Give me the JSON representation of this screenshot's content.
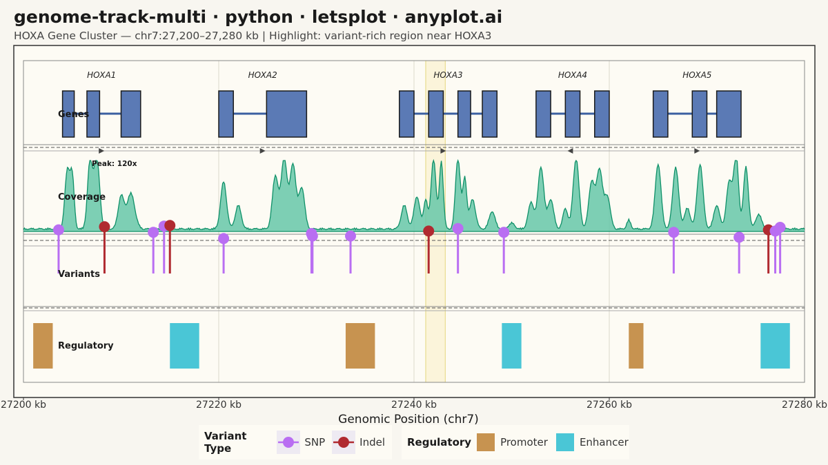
{
  "title": "genome-track-multi · python · letsplot · anyplot.ai",
  "subtitle": "HOXA Gene Cluster — chr7:27,200–27,280 kb  |  Highlight: variant-rich region near HOXA3",
  "chart_data": {
    "type": "genome-tracks",
    "xlabel": "Genomic Position (chr7)",
    "xlim": [
      27200,
      27280
    ],
    "x_ticks": [
      27200,
      27220,
      27240,
      27260,
      27280
    ],
    "x_tick_labels": [
      "27200 kb",
      "27220 kb",
      "27240 kb",
      "27260 kb",
      "27280 kb"
    ],
    "highlight": {
      "start": 27241.2,
      "end": 27243.2
    },
    "tracks": {
      "genes": "Genes",
      "coverage": "Coverage",
      "variants": "Variants",
      "regulatory": "Regulatory"
    },
    "genes": [
      {
        "name": "HOXA1",
        "start": 27204,
        "end": 27212,
        "strand": "+",
        "exons": [
          [
            27204,
            27205.2
          ],
          [
            27206.5,
            27207.8
          ],
          [
            27210,
            27212
          ]
        ]
      },
      {
        "name": "HOXA2",
        "start": 27220,
        "end": 27229,
        "strand": "+",
        "exons": [
          [
            27220,
            27221.5
          ],
          [
            27224.9,
            27229
          ]
        ]
      },
      {
        "name": "HOXA3",
        "start": 27238.5,
        "end": 27248.5,
        "strand": "+",
        "exons": [
          [
            27238.5,
            27240
          ],
          [
            27241.5,
            27243
          ],
          [
            27244.5,
            27245.8
          ],
          [
            27247,
            27248.5
          ]
        ]
      },
      {
        "name": "HOXA4",
        "start": 27252.5,
        "end": 27260,
        "strand": "-",
        "exons": [
          [
            27252.5,
            27254
          ],
          [
            27255.5,
            27257
          ],
          [
            27258.5,
            27260
          ]
        ]
      },
      {
        "name": "HOXA5",
        "start": 27264.5,
        "end": 27273.5,
        "strand": "+",
        "exons": [
          [
            27264.5,
            27266
          ],
          [
            27268.5,
            27270
          ],
          [
            27271,
            27273.5
          ]
        ]
      }
    ],
    "gene_arrows": [
      {
        "x": 27208,
        "dir": "+"
      },
      {
        "x": 27224.5,
        "dir": "+"
      },
      {
        "x": 27243,
        "dir": "+"
      },
      {
        "x": 27256,
        "dir": "-"
      },
      {
        "x": 27269,
        "dir": "+"
      }
    ],
    "coverage_annotation": "Peak: 120x",
    "coverage_max": 120,
    "coverage_peaks": [
      {
        "center": 27204.5,
        "width": 0.25,
        "height": 100
      },
      {
        "center": 27205,
        "width": 0.2,
        "height": 85
      },
      {
        "center": 27206.8,
        "width": 0.25,
        "height": 110
      },
      {
        "center": 27207.5,
        "width": 0.3,
        "height": 120
      },
      {
        "center": 27210,
        "width": 0.3,
        "height": 55
      },
      {
        "center": 27211,
        "width": 0.4,
        "height": 60
      },
      {
        "center": 27220.5,
        "width": 0.3,
        "height": 80
      },
      {
        "center": 27222,
        "width": 0.3,
        "height": 40
      },
      {
        "center": 27225.8,
        "width": 0.3,
        "height": 90
      },
      {
        "center": 27226.7,
        "width": 0.3,
        "height": 120
      },
      {
        "center": 27227.6,
        "width": 0.3,
        "height": 110
      },
      {
        "center": 27228.5,
        "width": 0.3,
        "height": 70
      },
      {
        "center": 27239,
        "width": 0.3,
        "height": 40
      },
      {
        "center": 27240.3,
        "width": 0.3,
        "height": 55
      },
      {
        "center": 27241.2,
        "width": 0.2,
        "height": 50
      },
      {
        "center": 27242,
        "width": 0.25,
        "height": 120
      },
      {
        "center": 27242.8,
        "width": 0.2,
        "height": 115
      },
      {
        "center": 27244.5,
        "width": 0.25,
        "height": 120
      },
      {
        "center": 27245.2,
        "width": 0.2,
        "height": 85
      },
      {
        "center": 27246,
        "width": 0.3,
        "height": 50
      },
      {
        "center": 27248,
        "width": 0.3,
        "height": 30
      },
      {
        "center": 27250,
        "width": 0.3,
        "height": 10
      },
      {
        "center": 27252,
        "width": 0.3,
        "height": 45
      },
      {
        "center": 27253,
        "width": 0.3,
        "height": 105
      },
      {
        "center": 27254,
        "width": 0.3,
        "height": 50
      },
      {
        "center": 27255.5,
        "width": 0.25,
        "height": 35
      },
      {
        "center": 27256.6,
        "width": 0.3,
        "height": 120
      },
      {
        "center": 27258.2,
        "width": 0.3,
        "height": 80
      },
      {
        "center": 27259,
        "width": 0.3,
        "height": 100
      },
      {
        "center": 27259.8,
        "width": 0.3,
        "height": 55
      },
      {
        "center": 27262,
        "width": 0.2,
        "height": 15
      },
      {
        "center": 27265,
        "width": 0.3,
        "height": 110
      },
      {
        "center": 27266.8,
        "width": 0.3,
        "height": 105
      },
      {
        "center": 27268,
        "width": 0.3,
        "height": 35
      },
      {
        "center": 27269.3,
        "width": 0.3,
        "height": 110
      },
      {
        "center": 27271,
        "width": 0.3,
        "height": 40
      },
      {
        "center": 27272.3,
        "width": 0.3,
        "height": 80
      },
      {
        "center": 27273,
        "width": 0.25,
        "height": 120
      },
      {
        "center": 27274,
        "width": 0.25,
        "height": 105
      },
      {
        "center": 27275.3,
        "width": 0.3,
        "height": 25
      }
    ],
    "variants": [
      {
        "pos": 27203.6,
        "type": "SNP",
        "y": 0.3
      },
      {
        "pos": 27208.3,
        "type": "Indel",
        "y": 0.55
      },
      {
        "pos": 27213.3,
        "type": "SNP",
        "y": 0.1
      },
      {
        "pos": 27214.4,
        "type": "SNP",
        "y": 0.6
      },
      {
        "pos": 27215,
        "type": "Indel",
        "y": 0.65
      },
      {
        "pos": 27220.5,
        "type": "SNP",
        "y": -0.4
      },
      {
        "pos": 27229.5,
        "type": "SNP",
        "y": 0.0
      },
      {
        "pos": 27229.6,
        "type": "SNP",
        "y": -0.2
      },
      {
        "pos": 27233.5,
        "type": "SNP",
        "y": -0.2
      },
      {
        "pos": 27241.5,
        "type": "Indel",
        "y": 0.2
      },
      {
        "pos": 27244.5,
        "type": "SNP",
        "y": 0.4
      },
      {
        "pos": 27249.2,
        "type": "SNP",
        "y": 0.1
      },
      {
        "pos": 27266.6,
        "type": "SNP",
        "y": 0.1
      },
      {
        "pos": 27273.3,
        "type": "SNP",
        "y": -0.3
      },
      {
        "pos": 27276.3,
        "type": "Indel",
        "y": 0.3
      },
      {
        "pos": 27277,
        "type": "SNP",
        "y": 0.2
      },
      {
        "pos": 27277.5,
        "type": "SNP",
        "y": 0.5
      }
    ],
    "regulatory": [
      {
        "start": 27201,
        "end": 27203,
        "type": "Promoter"
      },
      {
        "start": 27215,
        "end": 27218,
        "type": "Enhancer"
      },
      {
        "start": 27233,
        "end": 27236,
        "type": "Promoter"
      },
      {
        "start": 27249,
        "end": 27251,
        "type": "Enhancer"
      },
      {
        "start": 27262,
        "end": 27263.5,
        "type": "Promoter"
      },
      {
        "start": 27275.5,
        "end": 27278.5,
        "type": "Enhancer"
      }
    ]
  },
  "legend": {
    "variant_title": "Variant Type",
    "snp_label": "SNP",
    "indel_label": "Indel",
    "regulatory_title": "Regulatory",
    "promoter_label": "Promoter",
    "enhancer_label": "Enhancer"
  },
  "colors": {
    "exon": "#5b7ab5",
    "gene_line": "#3a5fa0",
    "coverage_fill": "#66c7a8",
    "coverage_line": "#0f9068",
    "snp": "#b96ef2",
    "indel": "#b02a30",
    "promoter": "#c79350",
    "enhancer": "#4ac6d6",
    "highlight": "#f5e9a8"
  }
}
